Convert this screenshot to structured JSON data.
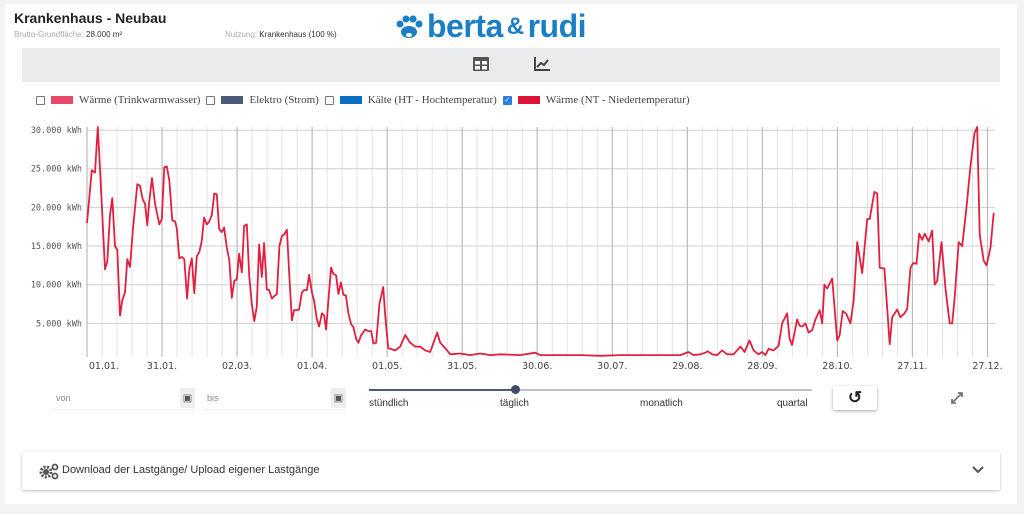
{
  "header": {
    "title": "Krankenhaus - Neubau",
    "area_label": "Brutto-Grundfläche:",
    "area_value": "28.000 m²",
    "use_label": "Nutzung:",
    "use_value": "Krankenhaus (100 %)",
    "logo": "berta & rudi",
    "logo_main": "berta",
    "logo_amp": "&",
    "logo_end": "rudi"
  },
  "toolbar": {
    "icons": [
      "table-icon",
      "chart-line-icon"
    ]
  },
  "legend": [
    {
      "label": "Wärme (Trinkwarmwasser)",
      "color": "#e94a6b",
      "checked": false
    },
    {
      "label": "Elektro (Strom)",
      "color": "#4a5a78",
      "checked": false
    },
    {
      "label": "Kälte (HT - Hochtemperatur)",
      "color": "#0a6fc2",
      "checked": false
    },
    {
      "label": "Wärme (NT - Niedertemperatur)",
      "color": "#dc143c",
      "checked": true
    }
  ],
  "controls": {
    "from_placeholder": "von",
    "to_placeholder": "bis",
    "resolution_options": [
      "stündlich",
      "täglich",
      "monatlich",
      "quartal"
    ],
    "resolution_selected": "täglich"
  },
  "accordion": {
    "label": "Download der Lastgänge/ Upload eigener Lastgänge"
  },
  "chart_data": {
    "type": "line",
    "title": "",
    "xlabel": "",
    "ylabel": "kWh",
    "y_ticks": [
      "5.000 kWh",
      "10.000 kWh",
      "15.000 kWh",
      "20.000 kWh",
      "25.000 kWh",
      "30.000 kWh"
    ],
    "y_tick_values": [
      5000,
      10000,
      15000,
      20000,
      25000,
      30000
    ],
    "x_ticks": [
      "01.01.",
      "31.01.",
      "02.03.",
      "01.04.",
      "01.05.",
      "31.05.",
      "30.06.",
      "30.07.",
      "29.08.",
      "28.09.",
      "28.10.",
      "27.11.",
      "27.12."
    ],
    "x_tick_days": [
      0,
      30,
      60,
      90,
      120,
      150,
      180,
      210,
      240,
      270,
      300,
      330,
      360
    ],
    "xlim": [
      0,
      363
    ],
    "ylim": [
      650,
      30400
    ],
    "grid": true,
    "series": [
      {
        "name": "Wärme (NT - Niedertemperatur)",
        "color": "#e0203f",
        "points": [
          [
            0,
            18000
          ],
          [
            1.9,
            24800
          ],
          [
            3.2,
            24500
          ],
          [
            4.3,
            30500
          ],
          [
            5.2,
            25000
          ],
          [
            7.2,
            12000
          ],
          [
            8.1,
            13000
          ],
          [
            9.2,
            19000
          ],
          [
            10.1,
            21200
          ],
          [
            11.2,
            15000
          ],
          [
            12.1,
            14500
          ],
          [
            13.2,
            6000
          ],
          [
            14.1,
            8000
          ],
          [
            15.2,
            9000
          ],
          [
            16.1,
            13300
          ],
          [
            17.2,
            12300
          ],
          [
            18.3,
            17000
          ],
          [
            20.1,
            23000
          ],
          [
            21.2,
            22800
          ],
          [
            22.3,
            21000
          ],
          [
            23.2,
            20500
          ],
          [
            24.1,
            17700
          ],
          [
            24.9,
            20800
          ],
          [
            26,
            23800
          ],
          [
            27.2,
            20500
          ],
          [
            28.9,
            17800
          ],
          [
            29.9,
            18500
          ],
          [
            30.9,
            25200
          ],
          [
            31.9,
            25300
          ],
          [
            32.9,
            23500
          ],
          [
            34.1,
            18300
          ],
          [
            35.2,
            18200
          ],
          [
            35.9,
            17300
          ],
          [
            36.9,
            13400
          ],
          [
            37.9,
            13600
          ],
          [
            38.9,
            13300
          ],
          [
            40,
            8200
          ],
          [
            40.9,
            12000
          ],
          [
            41.9,
            13400
          ],
          [
            42.9,
            8900
          ],
          [
            43.9,
            13700
          ],
          [
            44.9,
            14200
          ],
          [
            45.9,
            15700
          ],
          [
            46.8,
            18700
          ],
          [
            47.9,
            17800
          ],
          [
            48.9,
            18200
          ],
          [
            49.9,
            19000
          ],
          [
            50.9,
            21800
          ],
          [
            51.9,
            21700
          ],
          [
            52.8,
            17200
          ],
          [
            53.9,
            16800
          ],
          [
            54.8,
            17400
          ],
          [
            55.9,
            14800
          ],
          [
            56.9,
            13200
          ],
          [
            57.9,
            8300
          ],
          [
            58.9,
            10500
          ],
          [
            59.9,
            10700
          ],
          [
            60.8,
            14000
          ],
          [
            61.9,
            11600
          ],
          [
            62.8,
            17600
          ],
          [
            63.9,
            17800
          ],
          [
            64.9,
            11000
          ],
          [
            65.9,
            7500
          ],
          [
            66.9,
            5300
          ],
          [
            67.9,
            7200
          ],
          [
            68.8,
            15200
          ],
          [
            69.9,
            11000
          ],
          [
            70.8,
            15400
          ],
          [
            71.9,
            9400
          ],
          [
            72.8,
            9300
          ],
          [
            73.9,
            8200
          ],
          [
            74.8,
            8500
          ],
          [
            75.9,
            8800
          ],
          [
            76.9,
            15000
          ],
          [
            77.9,
            16300
          ],
          [
            78.8,
            16500
          ],
          [
            79.9,
            17100
          ],
          [
            80.9,
            11000
          ],
          [
            81.9,
            5400
          ],
          [
            82.8,
            6700
          ],
          [
            83.9,
            6700
          ],
          [
            84.8,
            6800
          ],
          [
            85.9,
            9000
          ],
          [
            86.8,
            9300
          ],
          [
            87.9,
            9300
          ],
          [
            88.8,
            11300
          ],
          [
            89.9,
            9000
          ],
          [
            90.8,
            7900
          ],
          [
            91.9,
            5500
          ],
          [
            92.8,
            4600
          ],
          [
            93.9,
            6300
          ],
          [
            94.8,
            6000
          ],
          [
            95.6,
            4200
          ],
          [
            96.5,
            8000
          ],
          [
            97.6,
            12200
          ],
          [
            98.5,
            11400
          ],
          [
            99.6,
            11200
          ],
          [
            100.5,
            8800
          ],
          [
            101.5,
            10300
          ],
          [
            102.5,
            8700
          ],
          [
            103.5,
            8600
          ],
          [
            104.5,
            6300
          ],
          [
            105.6,
            4900
          ],
          [
            106.5,
            4500
          ],
          [
            107.6,
            3000
          ],
          [
            108.5,
            2500
          ],
          [
            109.5,
            3400
          ],
          [
            111.2,
            4200
          ],
          [
            112.5,
            4000
          ],
          [
            113.6,
            4000
          ],
          [
            114.5,
            2400
          ],
          [
            115.6,
            2500
          ],
          [
            116.9,
            7500
          ],
          [
            118.4,
            9700
          ],
          [
            119.2,
            6000
          ],
          [
            120.4,
            1800
          ],
          [
            123.2,
            1500
          ],
          [
            125.2,
            2000
          ],
          [
            127.2,
            3500
          ],
          [
            129.2,
            2500
          ],
          [
            131.2,
            2000
          ],
          [
            133.2,
            2000
          ],
          [
            135.2,
            1500
          ],
          [
            137.2,
            1300
          ],
          [
            140,
            3800
          ],
          [
            141.2,
            2500
          ],
          [
            143.2,
            1800
          ],
          [
            145.2,
            1000
          ],
          [
            149.2,
            1100
          ],
          [
            153.2,
            900
          ],
          [
            157.2,
            1100
          ],
          [
            161.2,
            900
          ],
          [
            165.2,
            1000
          ],
          [
            173.2,
            900
          ],
          [
            179.2,
            1200
          ],
          [
            181.2,
            900
          ],
          [
            189.2,
            900
          ],
          [
            197.2,
            900
          ],
          [
            205.2,
            800
          ],
          [
            213.2,
            900
          ],
          [
            221.2,
            900
          ],
          [
            229.2,
            900
          ],
          [
            235.2,
            900
          ],
          [
            237.2,
            900
          ],
          [
            240.5,
            1300
          ],
          [
            242.5,
            900
          ],
          [
            245.2,
            1000
          ],
          [
            247.2,
            1200
          ],
          [
            248.1,
            1400
          ],
          [
            249.9,
            1000
          ],
          [
            251.9,
            900
          ],
          [
            253.9,
            1500
          ],
          [
            255.9,
            1000
          ],
          [
            258.5,
            1000
          ],
          [
            261.2,
            2000
          ],
          [
            262.9,
            1300
          ],
          [
            264.8,
            2800
          ],
          [
            266.5,
            1500
          ],
          [
            268.5,
            1000
          ],
          [
            269.9,
            1300
          ],
          [
            271.2,
            900
          ],
          [
            272.5,
            1700
          ],
          [
            274.5,
            1500
          ],
          [
            276.5,
            2100
          ],
          [
            277.9,
            5000
          ],
          [
            279.9,
            6300
          ],
          [
            280.9,
            3000
          ],
          [
            281.9,
            2200
          ],
          [
            283.9,
            5500
          ],
          [
            284.9,
            4700
          ],
          [
            285.9,
            4600
          ],
          [
            287.2,
            5000
          ],
          [
            288.5,
            3800
          ],
          [
            289.9,
            4100
          ],
          [
            291.2,
            5500
          ],
          [
            292.9,
            6700
          ],
          [
            293.9,
            5000
          ],
          [
            294.8,
            10000
          ],
          [
            295.9,
            9500
          ],
          [
            297.9,
            10800
          ],
          [
            299.9,
            2800
          ],
          [
            300.9,
            3500
          ],
          [
            302.1,
            6600
          ],
          [
            303.6,
            6200
          ],
          [
            305.2,
            5000
          ],
          [
            306.5,
            8000
          ],
          [
            307.9,
            15500
          ],
          [
            309.9,
            11500
          ],
          [
            311.9,
            18500
          ],
          [
            312.9,
            18500
          ],
          [
            314.8,
            22000
          ],
          [
            315.9,
            21800
          ],
          [
            316.9,
            12200
          ],
          [
            318.8,
            12100
          ],
          [
            320.9,
            2300
          ],
          [
            321.9,
            5800
          ],
          [
            323.9,
            6800
          ],
          [
            325.2,
            5800
          ],
          [
            326.8,
            6300
          ],
          [
            327.9,
            6900
          ],
          [
            329.2,
            12200
          ],
          [
            330.3,
            12800
          ],
          [
            331.6,
            12700
          ],
          [
            332.7,
            16600
          ],
          [
            333.9,
            15800
          ],
          [
            334.9,
            16600
          ],
          [
            336.5,
            15600
          ],
          [
            337.9,
            17000
          ],
          [
            338.9,
            10000
          ],
          [
            339.9,
            10500
          ],
          [
            341.6,
            15500
          ],
          [
            343.2,
            9500
          ],
          [
            344.9,
            5000
          ],
          [
            345.9,
            5000
          ],
          [
            346.9,
            8400
          ],
          [
            348.5,
            15500
          ],
          [
            349.9,
            15000
          ],
          [
            351.6,
            20000
          ],
          [
            353.2,
            25400
          ],
          [
            354.8,
            29600
          ],
          [
            355.9,
            30500
          ],
          [
            356.9,
            16500
          ],
          [
            358.5,
            13100
          ],
          [
            359.6,
            12500
          ],
          [
            361.2,
            14800
          ],
          [
            362.5,
            19300
          ]
        ]
      }
    ]
  }
}
